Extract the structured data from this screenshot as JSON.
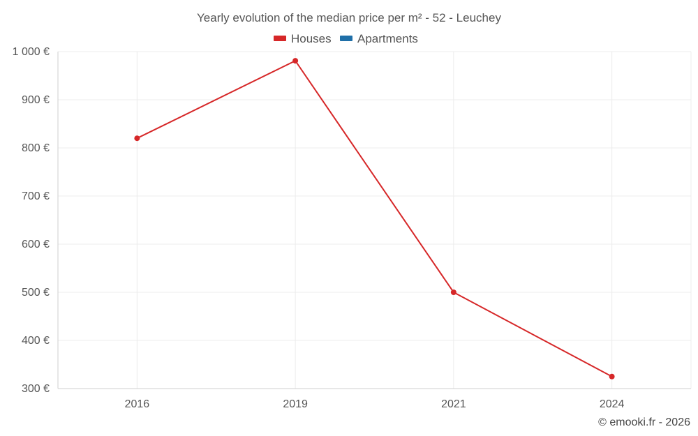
{
  "chart_data": {
    "type": "line",
    "title": "Yearly evolution of the median price per m² - 52 - Leuchey",
    "categories": [
      "2016",
      "2019",
      "2021",
      "2024"
    ],
    "series": [
      {
        "name": "Houses",
        "color": "#d62728",
        "values": [
          820,
          981,
          500,
          325
        ]
      },
      {
        "name": "Apartments",
        "color": "#1f6fa8",
        "values": [
          null,
          null,
          null,
          null
        ]
      }
    ],
    "y_ticks": [
      300,
      400,
      500,
      600,
      700,
      800,
      900,
      1000
    ],
    "y_tick_labels": [
      "300 €",
      "400 €",
      "500 €",
      "600 €",
      "700 €",
      "800 €",
      "900 €",
      "1 000 €"
    ],
    "ylim": [
      300,
      1000
    ],
    "xlabel": "",
    "ylabel": "",
    "legend_position": "top-center",
    "grid": true
  },
  "credit": "© emooki.fr - 2026"
}
